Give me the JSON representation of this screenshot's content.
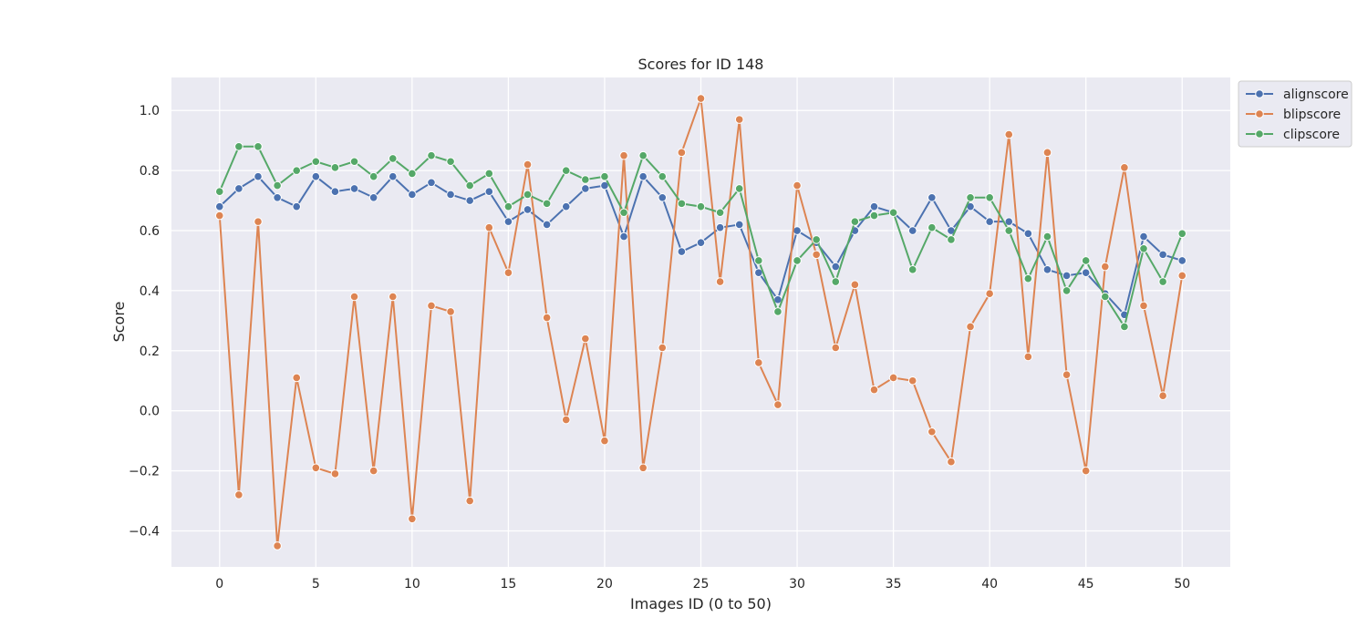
{
  "chart_data": {
    "type": "line",
    "title": "Scores for ID 148",
    "xlabel": "Images ID (0 to 50)",
    "ylabel": "Score",
    "xlim": [
      -2.5,
      52.5
    ],
    "ylim": [
      -0.52,
      1.11
    ],
    "x_ticks": [
      0,
      5,
      10,
      15,
      20,
      25,
      30,
      35,
      40,
      45,
      50
    ],
    "y_ticks": [
      -0.4,
      -0.2,
      0.0,
      0.2,
      0.4,
      0.6,
      0.8,
      1.0
    ],
    "y_tick_labels": [
      "−0.4",
      "−0.2",
      "0.0",
      "0.2",
      "0.4",
      "0.6",
      "0.8",
      "1.0"
    ],
    "x_tick_labels": [
      "0",
      "5",
      "10",
      "15",
      "20",
      "25",
      "30",
      "35",
      "40",
      "45",
      "50"
    ],
    "grid": true,
    "legend_position": "outside-top-right",
    "background": "#eaeaf2",
    "grid_color": "#ffffff",
    "series": [
      {
        "name": "alignscore",
        "color": "#4c72b0",
        "values": [
          0.68,
          0.74,
          0.78,
          0.71,
          0.68,
          0.78,
          0.73,
          0.74,
          0.71,
          0.78,
          0.72,
          0.76,
          0.72,
          0.7,
          0.73,
          0.63,
          0.67,
          0.62,
          0.68,
          0.74,
          0.75,
          0.58,
          0.78,
          0.71,
          0.53,
          0.56,
          0.61,
          0.62,
          0.46,
          0.37,
          0.6,
          0.56,
          0.48,
          0.6,
          0.68,
          0.66,
          0.6,
          0.71,
          0.6,
          0.68,
          0.63,
          0.63,
          0.59,
          0.47,
          0.45,
          0.46,
          0.39,
          0.32,
          0.58,
          0.52,
          0.5
        ]
      },
      {
        "name": "blipscore",
        "color": "#dd8452",
        "values": [
          0.65,
          -0.28,
          0.63,
          -0.45,
          0.11,
          -0.19,
          -0.21,
          0.38,
          -0.2,
          0.38,
          -0.36,
          0.35,
          0.33,
          -0.3,
          0.61,
          0.46,
          0.82,
          0.31,
          -0.03,
          0.24,
          -0.1,
          0.85,
          -0.19,
          0.21,
          0.86,
          1.04,
          0.43,
          0.97,
          0.16,
          0.02,
          0.75,
          0.52,
          0.21,
          0.42,
          0.07,
          0.11,
          0.1,
          -0.07,
          -0.17,
          0.28,
          0.39,
          0.92,
          0.18,
          0.86,
          0.12,
          -0.2,
          0.48,
          0.81,
          0.35,
          0.05,
          0.45
        ]
      },
      {
        "name": "clipscore",
        "color": "#55a868",
        "values": [
          0.73,
          0.88,
          0.88,
          0.75,
          0.8,
          0.83,
          0.81,
          0.83,
          0.78,
          0.84,
          0.79,
          0.85,
          0.83,
          0.75,
          0.79,
          0.68,
          0.72,
          0.69,
          0.8,
          0.77,
          0.78,
          0.66,
          0.85,
          0.78,
          0.69,
          0.68,
          0.66,
          0.74,
          0.5,
          0.33,
          0.5,
          0.57,
          0.43,
          0.63,
          0.65,
          0.66,
          0.47,
          0.61,
          0.57,
          0.71,
          0.71,
          0.6,
          0.44,
          0.58,
          0.4,
          0.5,
          0.38,
          0.28,
          0.54,
          0.43,
          0.59
        ]
      }
    ]
  }
}
